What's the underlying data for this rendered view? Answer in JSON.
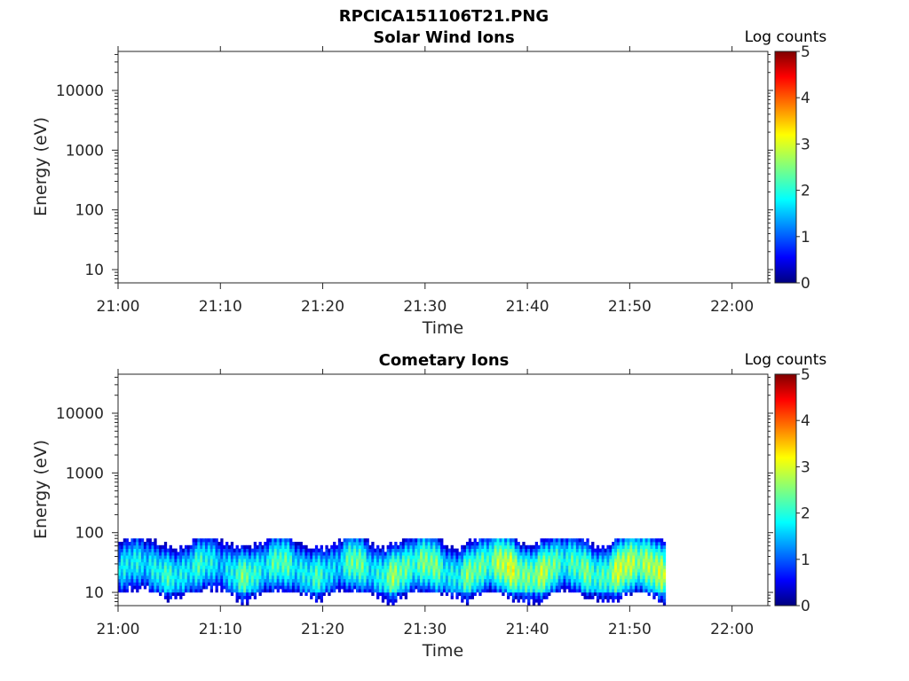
{
  "figure": {
    "filename": "RPCICA151106T21.PNG"
  },
  "panels": [
    {
      "title": "Solar Wind Ions",
      "ylabel": "Energy (eV)",
      "xlabel": "Time",
      "colorbar_label": "Log counts"
    },
    {
      "title": "Cometary Ions",
      "ylabel": "Energy (eV)",
      "xlabel": "Time",
      "colorbar_label": "Log counts"
    }
  ],
  "chart_data": [
    {
      "type": "heatmap",
      "title": "Solar Wind Ions",
      "xlabel": "Time",
      "ylabel": "Energy (eV)",
      "x_ticks": [
        "21:00",
        "21:10",
        "21:20",
        "21:30",
        "21:40",
        "21:50",
        "22:00"
      ],
      "x_range_minutes": [
        0,
        63.5
      ],
      "y_scale": "log",
      "y_ticks": [
        10,
        100,
        1000,
        10000
      ],
      "y_tick_labels": [
        "10",
        "100",
        "1000",
        "10000"
      ],
      "y_range": [
        6,
        45000
      ],
      "colorbar": {
        "label": "Log counts",
        "range": [
          0,
          5
        ],
        "ticks": [
          0,
          1,
          2,
          3,
          4,
          5
        ],
        "colormap": "jet"
      },
      "data": "empty - no counts recorded"
    },
    {
      "type": "heatmap",
      "title": "Cometary Ions",
      "xlabel": "Time",
      "ylabel": "Energy (eV)",
      "x_ticks": [
        "21:00",
        "21:10",
        "21:20",
        "21:30",
        "21:40",
        "21:50",
        "22:00"
      ],
      "x_range_minutes": [
        0,
        63.5
      ],
      "y_scale": "log",
      "y_ticks": [
        10,
        100,
        1000,
        10000
      ],
      "y_tick_labels": [
        "10",
        "100",
        "1000",
        "10000"
      ],
      "y_range": [
        6,
        45000
      ],
      "colorbar": {
        "label": "Log counts",
        "range": [
          0,
          5
        ],
        "ticks": [
          0,
          1,
          2,
          3,
          4,
          5
        ],
        "colormap": "jet"
      },
      "data_time_range_minutes": [
        0,
        53.5
      ],
      "data_energy_range_eV": [
        6,
        80
      ],
      "peak_band_energy_eV": [
        15,
        40
      ],
      "intensity_profile": [
        {
          "minute": 1,
          "peak_log_counts": 1.6
        },
        {
          "minute": 3,
          "peak_log_counts": 2.0
        },
        {
          "minute": 5,
          "peak_log_counts": 1.8
        },
        {
          "minute": 7,
          "peak_log_counts": 2.1
        },
        {
          "minute": 9,
          "peak_log_counts": 1.7
        },
        {
          "minute": 11,
          "peak_log_counts": 1.9
        },
        {
          "minute": 13,
          "peak_log_counts": 2.2
        },
        {
          "minute": 15,
          "peak_log_counts": 2.0
        },
        {
          "minute": 17,
          "peak_log_counts": 2.1
        },
        {
          "minute": 19,
          "peak_log_counts": 1.9
        },
        {
          "minute": 21,
          "peak_log_counts": 1.8
        },
        {
          "minute": 23,
          "peak_log_counts": 2.2
        },
        {
          "minute": 25,
          "peak_log_counts": 2.0
        },
        {
          "minute": 27,
          "peak_log_counts": 2.3
        },
        {
          "minute": 29,
          "peak_log_counts": 2.4
        },
        {
          "minute": 31,
          "peak_log_counts": 2.2
        },
        {
          "minute": 33,
          "peak_log_counts": 2.0
        },
        {
          "minute": 35,
          "peak_log_counts": 2.3
        },
        {
          "minute": 37,
          "peak_log_counts": 2.6
        },
        {
          "minute": 39,
          "peak_log_counts": 2.7
        },
        {
          "minute": 41,
          "peak_log_counts": 2.5
        },
        {
          "minute": 43,
          "peak_log_counts": 2.3
        },
        {
          "minute": 45,
          "peak_log_counts": 2.1
        },
        {
          "minute": 47,
          "peak_log_counts": 2.3
        },
        {
          "minute": 49,
          "peak_log_counts": 2.6
        },
        {
          "minute": 51,
          "peak_log_counts": 2.8
        },
        {
          "minute": 53,
          "peak_log_counts": 2.5
        }
      ]
    }
  ]
}
